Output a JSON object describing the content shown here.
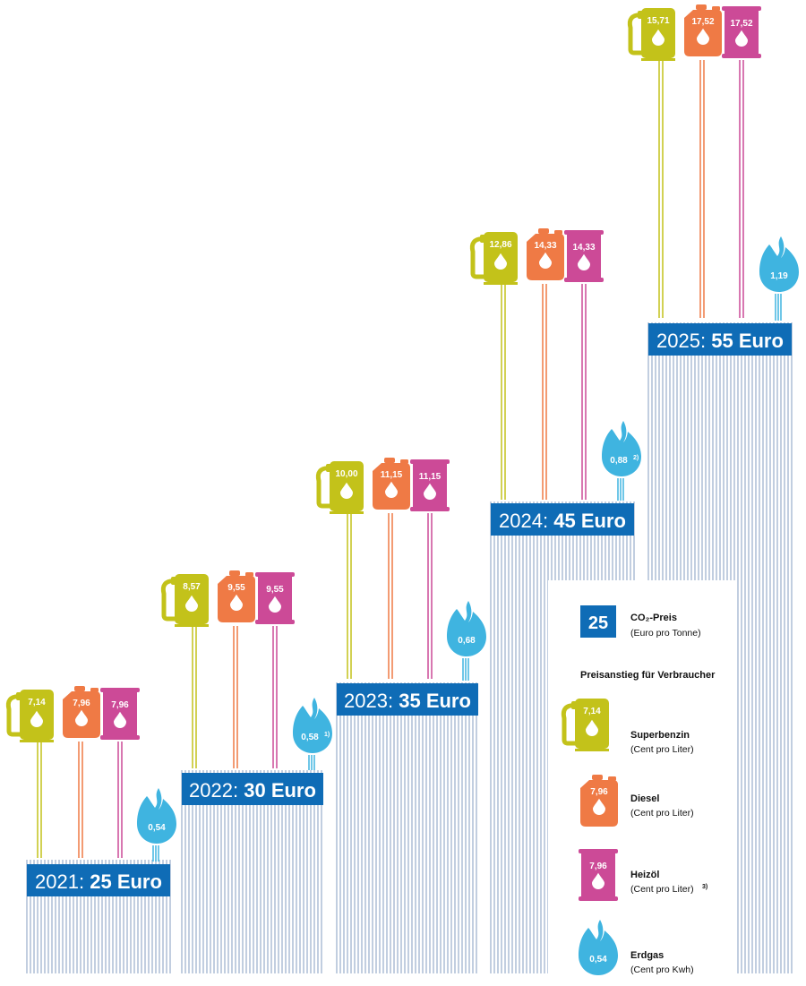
{
  "chart_data": {
    "type": "bar",
    "categories": [
      "2021",
      "2022",
      "2023",
      "2024",
      "2025"
    ],
    "co2_price": [
      25,
      30,
      35,
      45,
      55
    ],
    "co2_price_labels": [
      {
        "year": "2021",
        "price": "25 Euro"
      },
      {
        "year": "2022",
        "price": "30 Euro"
      },
      {
        "year": "2023",
        "price": "35 Euro"
      },
      {
        "year": "2024",
        "price": "45 Euro"
      },
      {
        "year": "2025",
        "price": "55 Euro"
      }
    ],
    "series": [
      {
        "name": "Superbenzin",
        "unit": "Cent pro Liter",
        "values": [
          "7,14",
          "8,57",
          "10,00",
          "12,86",
          "15,71"
        ]
      },
      {
        "name": "Diesel",
        "unit": "Cent pro Liter",
        "values": [
          "7,96",
          "9,55",
          "11,15",
          "14,33",
          "17,52"
        ]
      },
      {
        "name": "Heizöl",
        "unit": "Cent pro Liter",
        "values": [
          "7,96",
          "9,55",
          "11,15",
          "14,33",
          "17,52"
        ]
      },
      {
        "name": "Erdgas",
        "unit": "Cent pro Kwh",
        "values": [
          "0,54",
          "0,58",
          "0,68",
          "0,88",
          "1,19"
        ]
      }
    ],
    "footnotes": [
      "",
      "1)",
      "",
      "2)",
      ""
    ]
  },
  "legend": {
    "co2_box_value": "25",
    "co2_title": "CO₂-Preis",
    "co2_sub": "(Euro pro Tonne)",
    "section_title": "Preisanstieg für Verbraucher",
    "items": [
      {
        "title": "Superbenzin",
        "sub": "(Cent pro Liter)",
        "sample": "7,14"
      },
      {
        "title": "Diesel",
        "sub": "(Cent pro Liter)",
        "sample": "7,96"
      },
      {
        "title": "Heizöl",
        "sub": "(Cent pro Liter)",
        "note": "3)",
        "sample": "7,96"
      },
      {
        "title": "Erdgas",
        "sub": "(Cent pro Kwh)",
        "sample": "0,54"
      }
    ]
  },
  "colors": {
    "co2_blue": "#0f6cb6",
    "column_line": "#a7b9d2",
    "superbenzin": "#c3c21a",
    "diesel": "#ef7a45",
    "heizoel": "#cc4a97",
    "erdgas": "#3fb4e0"
  },
  "icons": {
    "superbenzin": "fuel-pump-icon",
    "diesel": "jerrycan-icon",
    "heizoel": "oil-barrel-icon",
    "erdgas": "gas-flame-icon"
  }
}
